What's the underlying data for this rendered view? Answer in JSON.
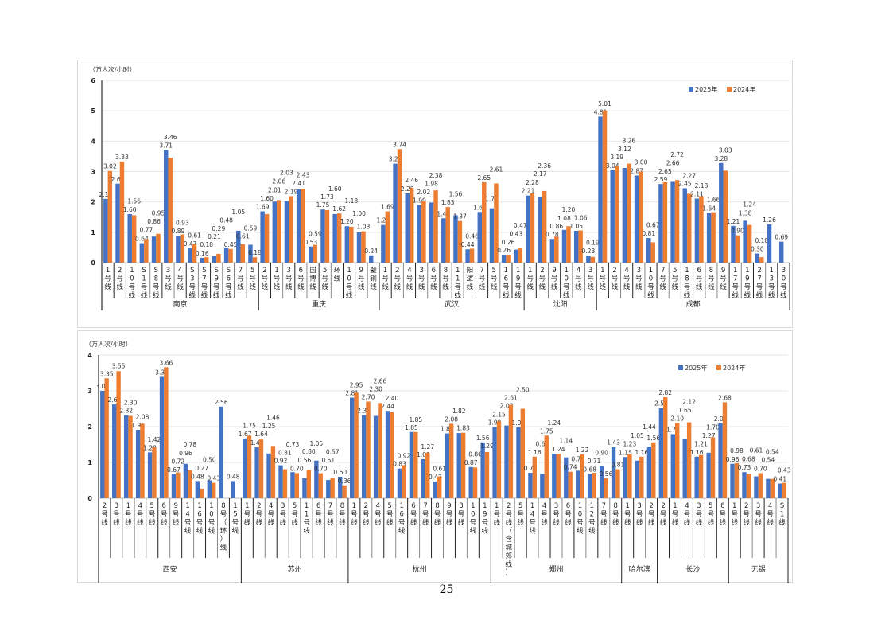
{
  "page_number": "25",
  "colors": {
    "s2025": "#4472C4",
    "s2024": "#ED7D31",
    "grid": "#e6e6e6",
    "axis": "#808080"
  },
  "chart_data": [
    {
      "type": "bar",
      "ylabel": "（万人次/小时）",
      "ylim": [
        0,
        6
      ],
      "yticks": [
        "0",
        "1",
        "2",
        "3",
        "4",
        "5",
        "6"
      ],
      "grid": true,
      "legend_position": "top-right",
      "legend": [
        "2025年",
        "2024年"
      ],
      "groups": [
        {
          "city": "南京",
          "categories": [
            "1号线",
            "2号线",
            "10号线",
            "S1号线",
            "S8号线",
            "3号线",
            "4号线",
            "S3号线",
            "S7号线",
            "S9号线",
            "S6号线",
            "7号线",
            "5号线"
          ],
          "v2025": [
            2.1,
            2.6,
            1.6,
            0.64,
            0.86,
            3.71,
            0.89,
            0.47,
            0.16,
            0.21,
            0.48,
            1.05,
            0.59
          ],
          "v2024": [
            3.02,
            3.33,
            1.56,
            0.77,
            0.95,
            3.46,
            0.93,
            0.61,
            0.18,
            0.29,
            0.45,
            0.61,
            0.18
          ]
        },
        {
          "city": "重庆",
          "categories": [
            "2号线",
            "1号线",
            "3号线",
            "6号线",
            "国博线",
            "5号线",
            "环线",
            "10号线",
            "9号线",
            "璧铜线"
          ],
          "v2025": [
            1.69,
            2.01,
            2.03,
            2.41,
            0.53,
            1.75,
            1.6,
            1.2,
            1.0,
            0.24
          ],
          "v2024": [
            1.6,
            2.06,
            2.19,
            2.43,
            0.59,
            1.73,
            1.62,
            1.18,
            1.03,
            null
          ]
        },
        {
          "city": "武汉",
          "categories": [
            "1号线",
            "2号线",
            "4号线",
            "3号线",
            "6号线",
            "8号线",
            "11号线",
            "阳逻线",
            "7号线",
            "5号线",
            "16号线",
            "19号线"
          ],
          "v2025": [
            1.24,
            3.26,
            2.28,
            1.9,
            1.98,
            1.46,
            1.56,
            0.44,
            1.67,
            1.79,
            0.26,
            0.43
          ],
          "v2024": [
            1.69,
            3.74,
            2.46,
            2.02,
            2.38,
            1.83,
            1.37,
            0.46,
            2.65,
            2.61,
            0.26,
            0.47
          ]
        },
        {
          "city": "沈阳",
          "categories": [
            "1号线",
            "2号线",
            "9号线",
            "10号线",
            "4号线",
            "3号线"
          ],
          "v2025": [
            2.21,
            2.17,
            0.78,
            1.08,
            1.05,
            0.23
          ],
          "v2024": [
            2.28,
            2.36,
            0.86,
            1.2,
            1.06,
            0.19
          ]
        },
        {
          "city": "成都",
          "categories": [
            "1号线",
            "2号线",
            "4号线",
            "3号线",
            "10号线",
            "7号线",
            "5号线",
            "18号线",
            "6号线",
            "8号线",
            "9号线",
            "17号线",
            "19号线",
            "27号线",
            "13号线",
            "30号线"
          ],
          "v2025": [
            4.81,
            3.04,
            3.12,
            2.87,
            0.81,
            2.59,
            2.66,
            2.45,
            2.11,
            1.64,
            3.28,
            1.21,
            1.38,
            0.3,
            1.26,
            0.69
          ],
          "v2024": [
            5.01,
            3.19,
            3.26,
            3.0,
            0.67,
            2.65,
            2.72,
            2.27,
            2.18,
            1.66,
            3.03,
            0.9,
            1.24,
            0.18,
            null,
            null
          ]
        }
      ]
    },
    {
      "type": "bar",
      "ylabel": "（万人次/小时）",
      "ylim": [
        0,
        4
      ],
      "yticks": [
        "0",
        "1",
        "2",
        "3",
        "4"
      ],
      "grid": true,
      "legend_position": "top-right",
      "legend": [
        "2025年",
        "2024年"
      ],
      "groups": [
        {
          "city": "西安",
          "categories": [
            "2号线",
            "3号线",
            "1号线",
            "4号线",
            "5号线",
            "6号线",
            "9号线",
            "14号线",
            "16号线",
            "10号线",
            "8号（环）线",
            "15号线"
          ],
          "v2025": [
            3.0,
            2.62,
            2.32,
            1.91,
            1.28,
            3.39,
            0.67,
            0.96,
            0.48,
            0.5,
            2.56,
            0.48
          ],
          "v2024": [
            3.35,
            3.55,
            2.3,
            2.08,
            1.42,
            3.66,
            0.72,
            0.78,
            0.27,
            0.43,
            null,
            null
          ]
        },
        {
          "city": "苏州",
          "categories": [
            "1号线",
            "2号线",
            "4号线",
            "3号线",
            "5号线",
            "11号线",
            "6号线",
            "7号线",
            "8号线"
          ],
          "v2025": [
            1.67,
            1.42,
            1.25,
            0.92,
            0.73,
            0.56,
            1.05,
            0.51,
            0.6
          ],
          "v2024": [
            1.75,
            1.64,
            1.46,
            0.81,
            0.7,
            0.8,
            0.7,
            0.57,
            0.36
          ]
        },
        {
          "city": "杭州",
          "categories": [
            "1号线",
            "2号线",
            "4号线",
            "5号线",
            "16号线",
            "6号线",
            "7号线",
            "8号线",
            "9号线",
            "3号线",
            "10号线",
            "19号线"
          ],
          "v2025": [
            2.81,
            2.32,
            2.3,
            2.44,
            0.83,
            1.85,
            1.09,
            0.47,
            1.81,
            1.82,
            0.87,
            1.56
          ],
          "v2024": [
            2.95,
            2.7,
            2.66,
            2.4,
            0.92,
            1.85,
            1.27,
            0.61,
            2.08,
            1.83,
            0.86,
            1.29
          ]
        },
        {
          "city": "郑州",
          "categories": [
            "1号线",
            "2号线（含城郊线）",
            "5号线",
            "14号线",
            "4号线",
            "3号线",
            "6号线",
            "10号线",
            "12号线",
            "7号线",
            "8号线"
          ],
          "v2025": [
            1.99,
            2.03,
            1.98,
            0.71,
            0.68,
            1.24,
            1.14,
            0.77,
            0.68,
            0.9,
            1.43
          ],
          "v2024": [
            2.15,
            2.61,
            2.5,
            1.16,
            1.75,
            1.24,
            0.74,
            1.22,
            0.71,
            0.56,
            0.81
          ]
        },
        {
          "city": "哈尔滨",
          "categories": [
            "1号线",
            "3号线",
            "2号线"
          ],
          "v2025": [
            1.15,
            1.05,
            1.44
          ],
          "v2024": [
            1.23,
            1.16,
            1.56
          ]
        },
        {
          "city": "长沙",
          "categories": [
            "2号线",
            "1号线",
            "4号线",
            "3号线",
            "5号线",
            "6号线"
          ],
          "v2025": [
            2.52,
            1.79,
            1.65,
            1.16,
            1.27,
            2.09
          ],
          "v2024": [
            2.82,
            2.1,
            2.12,
            1.21,
            1.7,
            2.68
          ]
        },
        {
          "city": "无锡",
          "categories": [
            "1号线",
            "2号线",
            "3号线",
            "4号线",
            "S1线"
          ],
          "v2025": [
            0.96,
            0.73,
            0.61,
            0.54,
            0.41
          ],
          "v2024": [
            0.98,
            0.68,
            0.7,
            0.54,
            0.43
          ]
        }
      ]
    }
  ]
}
